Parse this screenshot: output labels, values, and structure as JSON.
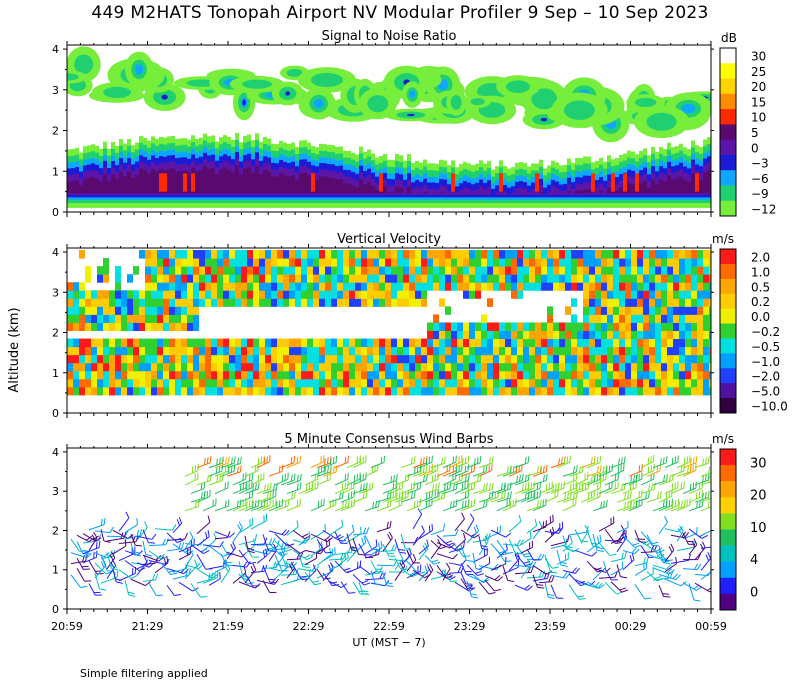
{
  "figure": {
    "title": "449 M2HATS Tonopah Airport NV Modular Profiler  9 Sep – 10 Sep 2023",
    "ylabel": "Altitude (km)",
    "xlabel": "UT  (MST − 7)",
    "footnote": "Simple filtering applied"
  },
  "chart_data": [
    {
      "type": "heatmap",
      "title": "Signal to Noise Ratio",
      "unit": "dB",
      "x_ticks": [
        "20:59",
        "21:29",
        "21:59",
        "22:29",
        "22:59",
        "23:29",
        "23:59",
        "00:29",
        "00:59"
      ],
      "y_ticks": [
        "0",
        "1",
        "2",
        "3",
        "4"
      ],
      "ylim": [
        0,
        4.1
      ],
      "colorbar": [
        {
          "label": "30",
          "color": "#ffffff"
        },
        {
          "label": "25",
          "color": "#ffff00"
        },
        {
          "label": "20",
          "color": "#ffd400"
        },
        {
          "label": "15",
          "color": "#ff8c00"
        },
        {
          "label": "10",
          "color": "#ff2a00"
        },
        {
          "label": "5",
          "color": "#5a0a6e"
        },
        {
          "label": "0",
          "color": "#5b16a8"
        },
        {
          "label": "−3",
          "color": "#1b1bd6"
        },
        {
          "label": "−6",
          "color": "#0fa6ff"
        },
        {
          "label": "−9",
          "color": "#20d070"
        },
        {
          "label": "−12",
          "color": "#78ee3c"
        }
      ]
    },
    {
      "type": "heatmap",
      "title": "Vertical Velocity",
      "unit": "m/s",
      "x_ticks": [
        "20:59",
        "21:29",
        "21:59",
        "22:29",
        "22:59",
        "23:29",
        "23:59",
        "00:29",
        "00:59"
      ],
      "y_ticks": [
        "0",
        "1",
        "2",
        "3",
        "4"
      ],
      "ylim": [
        0,
        4.1
      ],
      "colorbar": [
        {
          "label": "2.0",
          "color": "#ff1a1a"
        },
        {
          "label": "1.0",
          "color": "#ff6a00"
        },
        {
          "label": "0.5",
          "color": "#ffa500"
        },
        {
          "label": "0.2",
          "color": "#ffcc00"
        },
        {
          "label": "0.0",
          "color": "#f0f000"
        },
        {
          "label": "−0.2",
          "color": "#30d030"
        },
        {
          "label": "−0.5",
          "color": "#00e0e0"
        },
        {
          "label": "−1.0",
          "color": "#00a0ff"
        },
        {
          "label": "−2.0",
          "color": "#2040ff"
        },
        {
          "label": "−5.0",
          "color": "#5010a0"
        },
        {
          "label": "−10.0",
          "color": "#300040"
        }
      ]
    },
    {
      "type": "barbs",
      "title": "5 Minute Consensus Wind Barbs",
      "unit": "m/s",
      "x_ticks": [
        "20:59",
        "21:29",
        "21:59",
        "22:29",
        "22:59",
        "23:29",
        "23:59",
        "00:29",
        "00:59"
      ],
      "y_ticks": [
        "0",
        "1",
        "2",
        "3",
        "4"
      ],
      "ylim": [
        0,
        4.1
      ],
      "colorbar": [
        {
          "label": "30",
          "color": "#ff1a1a"
        },
        {
          "label": "20",
          "color": "#ff9900"
        },
        {
          "label": "10",
          "color": "#80e020"
        },
        {
          "label": "4",
          "color": "#00a0ff"
        },
        {
          "label": "0",
          "color": "#500080"
        }
      ],
      "colorbar_levels": [
        {
          "color": "#ff1a1a"
        },
        {
          "color": "#ff6a00"
        },
        {
          "color": "#ffa500"
        },
        {
          "color": "#ffd000"
        },
        {
          "color": "#80e020"
        },
        {
          "color": "#20c060"
        },
        {
          "color": "#00c0c0"
        },
        {
          "color": "#00a0ff"
        },
        {
          "color": "#2020ff"
        },
        {
          "color": "#500080"
        }
      ]
    }
  ]
}
